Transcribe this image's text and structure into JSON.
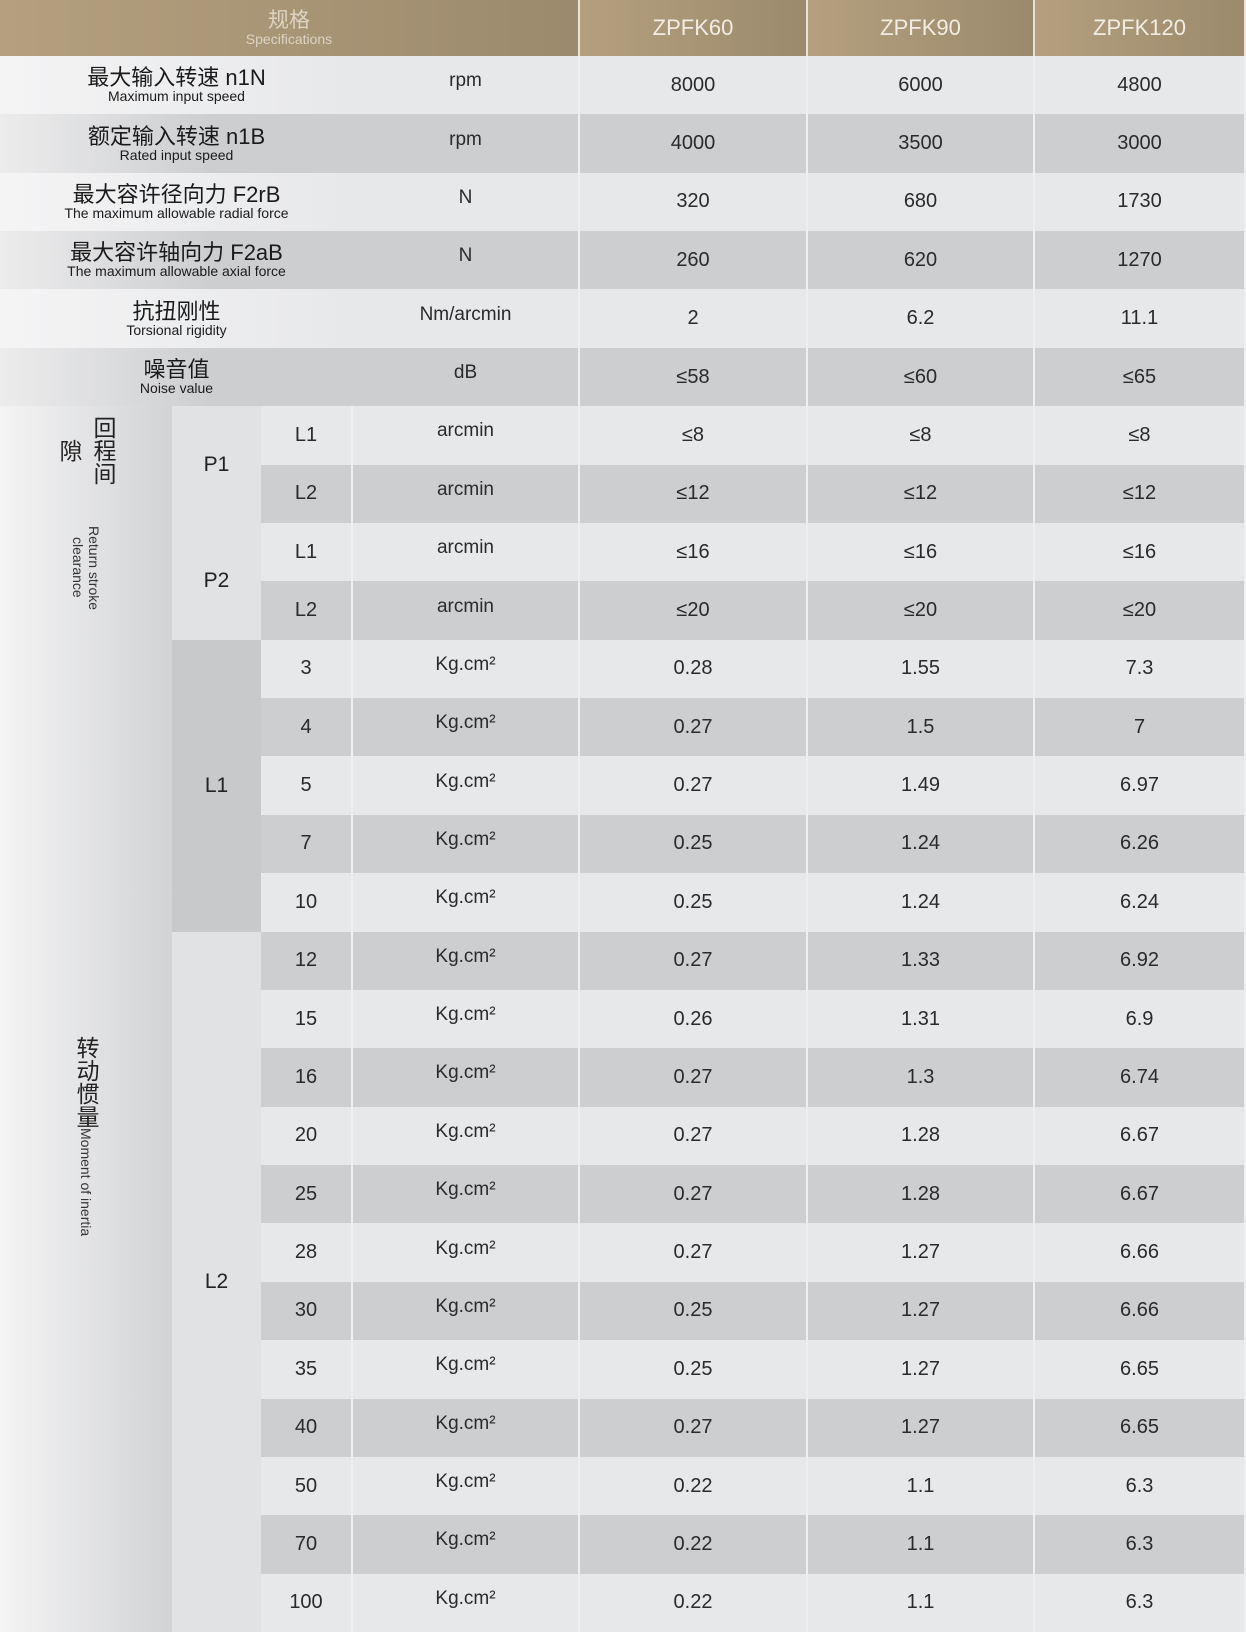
{
  "header": {
    "spec_zh": "规格",
    "spec_en": "Specifications",
    "models": [
      "ZPFK60",
      "ZPFK90",
      "ZPFK120"
    ]
  },
  "colors": {
    "header_gold": "#b4a07e",
    "row_light": "#e7e8ea",
    "row_dark": "#cdced0"
  },
  "spec_rows": [
    {
      "zh": "最大输入转速 n1N",
      "en": "Maximum input speed",
      "unit": "rpm",
      "values": [
        "8000",
        "6000",
        "4800"
      ]
    },
    {
      "zh": "额定输入转速 n1B",
      "en": "Rated input speed",
      "unit": "rpm",
      "values": [
        "4000",
        "3500",
        "3000"
      ]
    },
    {
      "zh": "最大容许径向力 F2rB",
      "en": "The maximum allowable radial force",
      "unit": "N",
      "values": [
        "320",
        "680",
        "1730"
      ]
    },
    {
      "zh": "最大容许轴向力 F2aB",
      "en": "The maximum allowable axial force",
      "unit": "N",
      "values": [
        "260",
        "620",
        "1270"
      ]
    },
    {
      "zh": "抗扭刚性",
      "en": "Torsional rigidity",
      "unit": "Nm/arcmin",
      "values": [
        "2",
        "6.2",
        "11.1"
      ]
    },
    {
      "zh": "噪音值",
      "en": "Noise value",
      "unit": "dB",
      "values": [
        "≤58",
        "≤60",
        "≤65"
      ]
    }
  ],
  "backlash": {
    "zh": "回程间隙",
    "en": "Return stroke clearance",
    "groups": [
      {
        "label": "P1",
        "rows": [
          {
            "sub": "L1",
            "unit": "arcmin",
            "values": [
              "≤8",
              "≤8",
              "≤8"
            ]
          },
          {
            "sub": "L2",
            "unit": "arcmin",
            "values": [
              "≤12",
              "≤12",
              "≤12"
            ]
          }
        ]
      },
      {
        "label": "P2",
        "rows": [
          {
            "sub": "L1",
            "unit": "arcmin",
            "values": [
              "≤16",
              "≤16",
              "≤16"
            ]
          },
          {
            "sub": "L2",
            "unit": "arcmin",
            "values": [
              "≤20",
              "≤20",
              "≤20"
            ]
          }
        ]
      }
    ]
  },
  "inertia": {
    "zh": "转动惯量",
    "en": "Moment of inertia",
    "groups": [
      {
        "label": "L1",
        "rows": [
          {
            "sub": "3",
            "unit": "Kg.cm²",
            "values": [
              "0.28",
              "1.55",
              "7.3"
            ]
          },
          {
            "sub": "4",
            "unit": "Kg.cm²",
            "values": [
              "0.27",
              "1.5",
              "7"
            ]
          },
          {
            "sub": "5",
            "unit": "Kg.cm²",
            "values": [
              "0.27",
              "1.49",
              "6.97"
            ]
          },
          {
            "sub": "7",
            "unit": "Kg.cm²",
            "values": [
              "0.25",
              "1.24",
              "6.26"
            ]
          },
          {
            "sub": "10",
            "unit": "Kg.cm²",
            "values": [
              "0.25",
              "1.24",
              "6.24"
            ]
          }
        ]
      },
      {
        "label": "L2",
        "rows": [
          {
            "sub": "12",
            "unit": "Kg.cm²",
            "values": [
              "0.27",
              "1.33",
              "6.92"
            ]
          },
          {
            "sub": "15",
            "unit": "Kg.cm²",
            "values": [
              "0.26",
              "1.31",
              "6.9"
            ]
          },
          {
            "sub": "16",
            "unit": "Kg.cm²",
            "values": [
              "0.27",
              "1.3",
              "6.74"
            ]
          },
          {
            "sub": "20",
            "unit": "Kg.cm²",
            "values": [
              "0.27",
              "1.28",
              "6.67"
            ]
          },
          {
            "sub": "25",
            "unit": "Kg.cm²",
            "values": [
              "0.27",
              "1.28",
              "6.67"
            ]
          },
          {
            "sub": "28",
            "unit": "Kg.cm²",
            "values": [
              "0.27",
              "1.27",
              "6.66"
            ]
          },
          {
            "sub": "30",
            "unit": "Kg.cm²",
            "values": [
              "0.25",
              "1.27",
              "6.66"
            ]
          },
          {
            "sub": "35",
            "unit": "Kg.cm²",
            "values": [
              "0.25",
              "1.27",
              "6.65"
            ]
          },
          {
            "sub": "40",
            "unit": "Kg.cm²",
            "values": [
              "0.27",
              "1.27",
              "6.65"
            ]
          },
          {
            "sub": "50",
            "unit": "Kg.cm²",
            "values": [
              "0.22",
              "1.1",
              "6.3"
            ]
          },
          {
            "sub": "70",
            "unit": "Kg.cm²",
            "values": [
              "0.22",
              "1.1",
              "6.3"
            ]
          },
          {
            "sub": "100",
            "unit": "Kg.cm²",
            "values": [
              "0.22",
              "1.1",
              "6.3"
            ]
          }
        ]
      }
    ]
  }
}
